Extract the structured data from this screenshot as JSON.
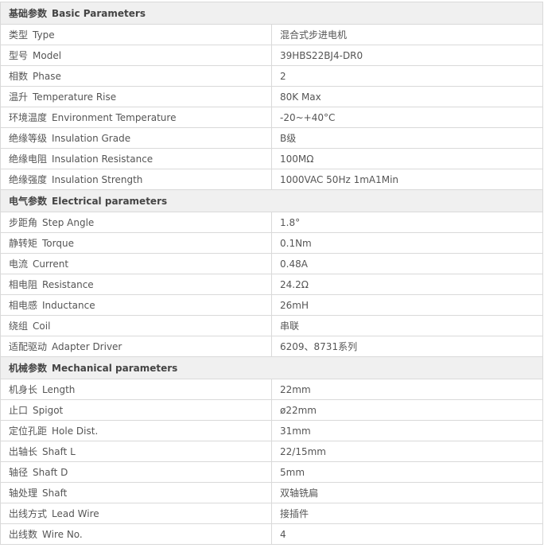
{
  "sections": [
    {
      "zh": "基础参数",
      "en": "Basic Parameters",
      "rows": [
        {
          "zh": "类型",
          "en": "Type",
          "value": "混合式步进电机"
        },
        {
          "zh": "型号",
          "en": "Model",
          "value": "39HBS22BJ4-DR0"
        },
        {
          "zh": "相数",
          "en": "Phase",
          "value": "2"
        },
        {
          "zh": "温升",
          "en": "Temperature Rise",
          "value": "80K Max"
        },
        {
          "zh": "环境温度",
          "en": "Environment Temperature",
          "value": "-20~+40°C"
        },
        {
          "zh": "绝缘等级",
          "en": "Insulation Grade",
          "value": "B级"
        },
        {
          "zh": "绝缘电阻",
          "en": "Insulation Resistance",
          "value": "100MΩ"
        },
        {
          "zh": "绝缘强度",
          "en": "Insulation Strength",
          "value": "1000VAC 50Hz 1mA1Min"
        }
      ]
    },
    {
      "zh": "电气参数",
      "en": "Electrical parameters",
      "rows": [
        {
          "zh": "步距角",
          "en": "Step Angle",
          "value": "1.8°"
        },
        {
          "zh": "静转矩",
          "en": "Torque",
          "value": "0.1Nm"
        },
        {
          "zh": "电流",
          "en": "Current",
          "value": "0.48A"
        },
        {
          "zh": "相电阻",
          "en": "Resistance",
          "value": "24.2Ω"
        },
        {
          "zh": "相电感",
          "en": "Inductance",
          "value": "26mH"
        },
        {
          "zh": "绕组",
          "en": "Coil",
          "value": "串联"
        },
        {
          "zh": "适配驱动",
          "en": "Adapter Driver",
          "value": "6209、8731系列"
        }
      ]
    },
    {
      "zh": "机械参数",
      "en": "Mechanical parameters",
      "rows": [
        {
          "zh": "机身长",
          "en": "Length",
          "value": "22mm"
        },
        {
          "zh": "止口",
          "en": "Spigot",
          "value": "ø22mm"
        },
        {
          "zh": "定位孔距",
          "en": "Hole Dist.",
          "value": "31mm"
        },
        {
          "zh": "出轴长",
          "en": "Shaft L",
          "value": "22/15mm"
        },
        {
          "zh": "轴径",
          "en": "Shaft D",
          "value": "5mm"
        },
        {
          "zh": "轴处理",
          "en": "Shaft",
          "value": "双轴铣扁"
        },
        {
          "zh": "出线方式",
          "en": "Lead Wire",
          "value": "接插件"
        },
        {
          "zh": "出线数",
          "en": "Wire No.",
          "value": "4"
        }
      ]
    }
  ]
}
